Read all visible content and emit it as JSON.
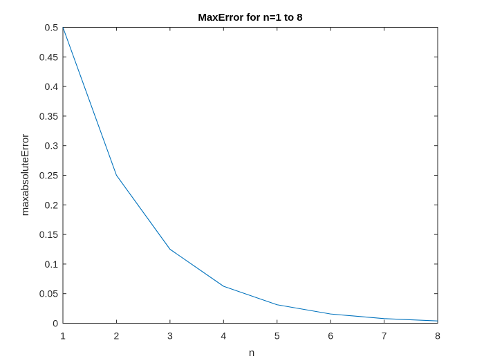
{
  "chart_data": {
    "type": "line",
    "title": "MaxError for n=1 to 8",
    "xlabel": "n",
    "ylabel": "maxabsoluteError",
    "xlim": [
      1,
      8
    ],
    "ylim": [
      0,
      0.5
    ],
    "x_ticks": [
      "1",
      "2",
      "3",
      "4",
      "5",
      "6",
      "7",
      "8"
    ],
    "y_ticks": [
      "0",
      "0.05",
      "0.1",
      "0.15",
      "0.2",
      "0.25",
      "0.3",
      "0.35",
      "0.4",
      "0.45",
      "0.5"
    ],
    "grid": false,
    "box": true,
    "series": [
      {
        "x": [
          1,
          2,
          3,
          4,
          5,
          6,
          7,
          8
        ],
        "values": [
          0.5,
          0.25,
          0.125,
          0.0625,
          0.03125,
          0.015625,
          0.0078125,
          0.00390625
        ],
        "color": "#0072BD"
      }
    ]
  }
}
